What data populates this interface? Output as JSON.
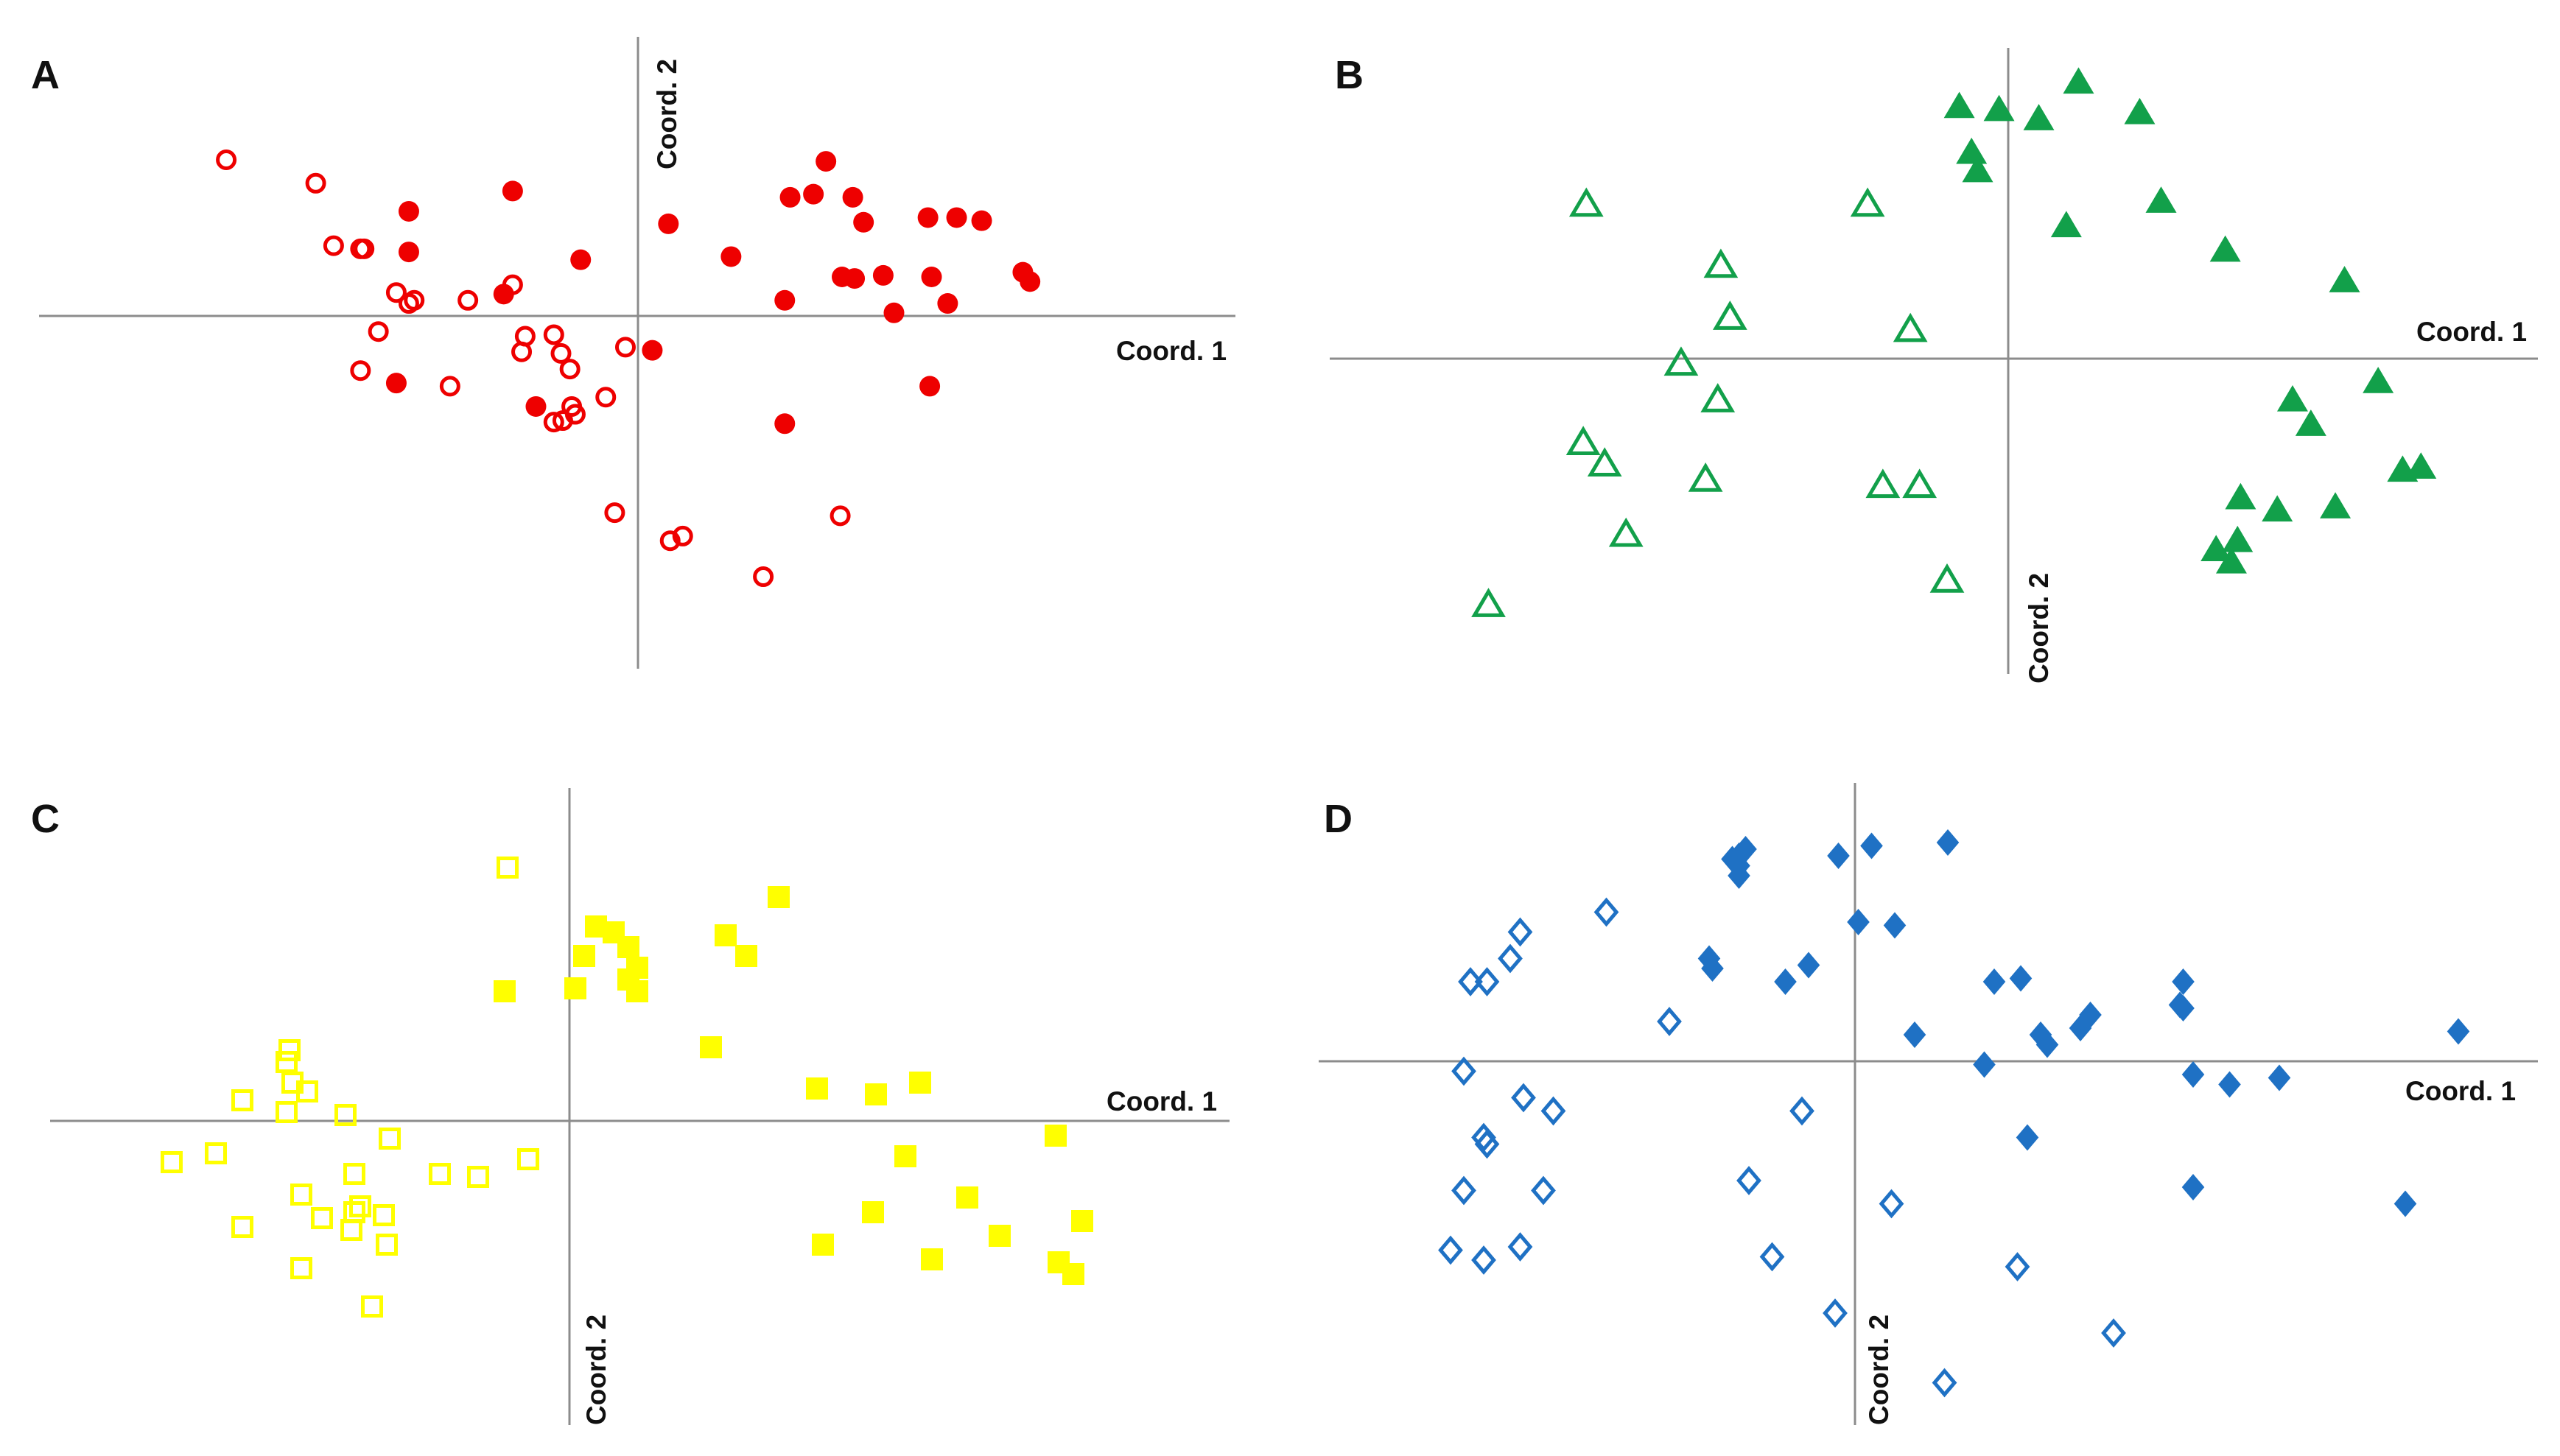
{
  "figure": {
    "colors": {
      "axis": "#8c8c8c",
      "text": "#111111"
    },
    "marker_sizes": {
      "circle": 14,
      "triangle": 21,
      "square": 15,
      "diamond": 18
    }
  },
  "chart_data": [
    {
      "panel": "A",
      "type": "scatter",
      "xlabel": "Coord. 1",
      "ylabel": "Coord. 2",
      "xlim": [
        -30,
        30
      ],
      "ylim": [
        -17,
        15
      ],
      "color": "#ee0000",
      "marker": "circle",
      "series": [
        {
          "name": "open",
          "fill": "open",
          "points": [
            [
              -23,
              10
            ],
            [
              -18,
              8.5
            ],
            [
              -17,
              4.5
            ],
            [
              -15.5,
              4.3
            ],
            [
              -15.3,
              4.3
            ],
            [
              -13.5,
              1.5
            ],
            [
              -12.5,
              1
            ],
            [
              -12.8,
              0.8
            ],
            [
              -14.5,
              -1
            ],
            [
              -15.5,
              -3.5
            ],
            [
              -10.5,
              -4.5
            ],
            [
              -9.5,
              1
            ],
            [
              -7,
              2
            ],
            [
              -6.5,
              -2.3
            ],
            [
              -6.3,
              -1.3
            ],
            [
              -4.7,
              -1.2
            ],
            [
              -4.3,
              -2.4
            ],
            [
              -3.8,
              -3.4
            ],
            [
              -3.7,
              -5.8
            ],
            [
              -3.5,
              -6.3
            ],
            [
              -4.7,
              -6.8
            ],
            [
              -4.2,
              -6.7
            ],
            [
              -1.8,
              -5.2
            ],
            [
              -0.7,
              -2
            ],
            [
              -1.3,
              -12.6
            ],
            [
              1.8,
              -14.4
            ],
            [
              2.5,
              -14.1
            ],
            [
              7,
              -16.7
            ],
            [
              11.3,
              -12.8
            ]
          ]
        },
        {
          "name": "filled",
          "fill": "filled",
          "points": [
            [
              -12.8,
              6.7
            ],
            [
              -7,
              8
            ],
            [
              -12.8,
              4.1
            ],
            [
              -3.2,
              3.6
            ],
            [
              -7.5,
              1.4
            ],
            [
              -13.5,
              -4.3
            ],
            [
              -5.7,
              -5.8
            ],
            [
              0.8,
              -2.2
            ],
            [
              1.7,
              5.9
            ],
            [
              5.2,
              3.8
            ],
            [
              8.2,
              1
            ],
            [
              8.2,
              -6.9
            ],
            [
              8.5,
              7.6
            ],
            [
              9.8,
              7.8
            ],
            [
              10.5,
              9.9
            ],
            [
              12,
              7.6
            ],
            [
              12.6,
              6
            ],
            [
              11.4,
              2.5
            ],
            [
              12.1,
              2.4
            ],
            [
              13.7,
              2.6
            ],
            [
              14.3,
              0.2
            ],
            [
              16.4,
              2.5
            ],
            [
              17.3,
              0.8
            ],
            [
              16.3,
              -4.5
            ],
            [
              16.2,
              6.3
            ],
            [
              17.8,
              6.3
            ],
            [
              19.2,
              6.1
            ],
            [
              21.5,
              2.8
            ],
            [
              21.9,
              2.2
            ]
          ]
        }
      ]
    },
    {
      "panel": "B",
      "type": "scatter",
      "xlabel": "Coord. 1",
      "ylabel": "Coord. 2",
      "xlim": [
        -22,
        17.5
      ],
      "ylim": [
        -10.5,
        10.5
      ],
      "color": "#12a04a",
      "marker": "triangle",
      "series": [
        {
          "name": "open",
          "fill": "open",
          "points": [
            [
              -13.8,
              5
            ],
            [
              -9.4,
              3
            ],
            [
              -9.1,
              1.3
            ],
            [
              -10.7,
              -0.2
            ],
            [
              -9.5,
              -1.4
            ],
            [
              -13.9,
              -2.8
            ],
            [
              -13.2,
              -3.5
            ],
            [
              -9.9,
              -4
            ],
            [
              -12.5,
              -5.8
            ],
            [
              -17,
              -8.1
            ],
            [
              -4.6,
              5
            ],
            [
              -3.2,
              0.9
            ],
            [
              -4.1,
              -4.2
            ],
            [
              -2.9,
              -4.2
            ],
            [
              -2,
              -7.3
            ]
          ]
        },
        {
          "name": "filled",
          "fill": "filled",
          "points": [
            [
              -1.6,
              8.2
            ],
            [
              -1.2,
              6.7
            ],
            [
              -1,
              6.1
            ],
            [
              -0.3,
              8.1
            ],
            [
              1,
              7.8
            ],
            [
              2.3,
              9
            ],
            [
              4.3,
              8
            ],
            [
              1.9,
              4.3
            ],
            [
              5,
              5.1
            ],
            [
              7.1,
              3.5
            ],
            [
              11,
              2.5
            ],
            [
              12.1,
              -0.8
            ],
            [
              9.3,
              -1.4
            ],
            [
              9.9,
              -2.2
            ],
            [
              13.5,
              -3.6
            ],
            [
              12.9,
              -3.7
            ],
            [
              7.6,
              -4.6
            ],
            [
              8.8,
              -5
            ],
            [
              10.7,
              -4.9
            ],
            [
              7.5,
              -6
            ],
            [
              6.8,
              -6.3
            ],
            [
              7.3,
              -6.7
            ]
          ]
        }
      ]
    },
    {
      "panel": "C",
      "type": "scatter",
      "xlabel": "Coord. 1",
      "ylabel": "Coord. 2",
      "xlim": [
        -16,
        20.5
      ],
      "ylim": [
        -9,
        10.5
      ],
      "color": "#ffff00",
      "marker": "square",
      "series": [
        {
          "name": "open",
          "fill": "open",
          "points": [
            [
              -2.1,
              8.6
            ],
            [
              -9.5,
              2.4
            ],
            [
              -9.6,
              2
            ],
            [
              -9.4,
              1.3
            ],
            [
              -8.9,
              1
            ],
            [
              -11.1,
              0.7
            ],
            [
              -9.6,
              0.3
            ],
            [
              -7.6,
              0.2
            ],
            [
              -6.1,
              -0.6
            ],
            [
              -12,
              -1.1
            ],
            [
              -13.5,
              -1.4
            ],
            [
              -7.3,
              -1.8
            ],
            [
              -4.4,
              -1.8
            ],
            [
              -3.1,
              -1.9
            ],
            [
              -1.4,
              -1.3
            ],
            [
              -9.1,
              -2.5
            ],
            [
              -7.1,
              -2.9
            ],
            [
              -8.4,
              -3.3
            ],
            [
              -7.3,
              -3.1
            ],
            [
              -6.3,
              -3.2
            ],
            [
              -7.4,
              -3.7
            ],
            [
              -6.2,
              -4.2
            ],
            [
              -11.1,
              -3.6
            ],
            [
              -9.1,
              -5
            ],
            [
              -6.7,
              -6.3
            ]
          ]
        },
        {
          "name": "filled",
          "fill": "filled",
          "points": [
            [
              0.9,
              6.6
            ],
            [
              0.5,
              5.6
            ],
            [
              1.5,
              6.4
            ],
            [
              2,
              5.9
            ],
            [
              2.3,
              5.2
            ],
            [
              2,
              4.8
            ],
            [
              2.3,
              4.4
            ],
            [
              0.2,
              4.5
            ],
            [
              -2.2,
              4.4
            ],
            [
              5.3,
              6.3
            ],
            [
              6,
              5.6
            ],
            [
              7.1,
              7.6
            ],
            [
              4.8,
              2.5
            ],
            [
              8.4,
              1.1
            ],
            [
              10.4,
              0.9
            ],
            [
              11.9,
              1.3
            ],
            [
              11.4,
              -1.2
            ],
            [
              10.3,
              -3.1
            ],
            [
              13.5,
              -2.6
            ],
            [
              14.6,
              -3.9
            ],
            [
              8.6,
              -4.2
            ],
            [
              12.3,
              -4.7
            ],
            [
              16.5,
              -0.5
            ],
            [
              17.4,
              -3.4
            ],
            [
              16.6,
              -4.8
            ],
            [
              17.1,
              -5.2
            ]
          ]
        }
      ]
    },
    {
      "panel": "D",
      "type": "scatter",
      "xlabel": "Coord. 1",
      "ylabel": "Coord. 2",
      "xlim": [
        -16,
        20
      ],
      "ylim": [
        -11.5,
        9
      ],
      "color": "#1f71c4",
      "marker": "diamond",
      "series": [
        {
          "name": "open",
          "fill": "open",
          "points": [
            [
              -7.5,
              4.5
            ],
            [
              -10.1,
              3.9
            ],
            [
              -10.4,
              3.1
            ],
            [
              -11.6,
              2.4
            ],
            [
              -11.1,
              2.4
            ],
            [
              -5.6,
              1.2
            ],
            [
              -11.8,
              -0.3
            ],
            [
              -10,
              -1.1
            ],
            [
              -9.1,
              -1.5
            ],
            [
              -11.2,
              -2.3
            ],
            [
              -11.1,
              -2.5
            ],
            [
              -1.6,
              -1.5
            ],
            [
              -3.2,
              -3.6
            ],
            [
              -11.8,
              -3.9
            ],
            [
              -9.4,
              -3.9
            ],
            [
              -12.2,
              -5.7
            ],
            [
              -10.1,
              -5.6
            ],
            [
              -11.2,
              -6
            ],
            [
              -2.5,
              -5.9
            ],
            [
              1.1,
              -4.3
            ],
            [
              4.9,
              -6.2
            ],
            [
              -0.6,
              -7.6
            ],
            [
              7.8,
              -8.2
            ],
            [
              2.7,
              -9.7
            ]
          ]
        },
        {
          "name": "filled",
          "fill": "filled",
          "points": [
            [
              -3.3,
              6.4
            ],
            [
              -3.5,
              6.2
            ],
            [
              -3.7,
              6.1
            ],
            [
              -3.5,
              5.9
            ],
            [
              -3.5,
              5.6
            ],
            [
              -0.5,
              6.2
            ],
            [
              0.5,
              6.5
            ],
            [
              2.8,
              6.6
            ],
            [
              0.1,
              4.2
            ],
            [
              1.2,
              4.1
            ],
            [
              -4.4,
              3.1
            ],
            [
              -4.3,
              2.8
            ],
            [
              -2.1,
              2.4
            ],
            [
              -1.4,
              2.9
            ],
            [
              4.2,
              2.4
            ],
            [
              5,
              2.5
            ],
            [
              1.8,
              0.8
            ],
            [
              5.6,
              0.8
            ],
            [
              5.8,
              0.5
            ],
            [
              6.8,
              1
            ],
            [
              7.1,
              1.4
            ],
            [
              3.9,
              -0.1
            ],
            [
              9.9,
              2.4
            ],
            [
              9.8,
              1.7
            ],
            [
              9.9,
              1.6
            ],
            [
              10.2,
              -0.4
            ],
            [
              11.3,
              -0.7
            ],
            [
              12.8,
              -0.5
            ],
            [
              18.2,
              0.9
            ],
            [
              5.2,
              -2.3
            ],
            [
              10.2,
              -3.8
            ],
            [
              16.6,
              -4.3
            ]
          ]
        }
      ]
    }
  ]
}
